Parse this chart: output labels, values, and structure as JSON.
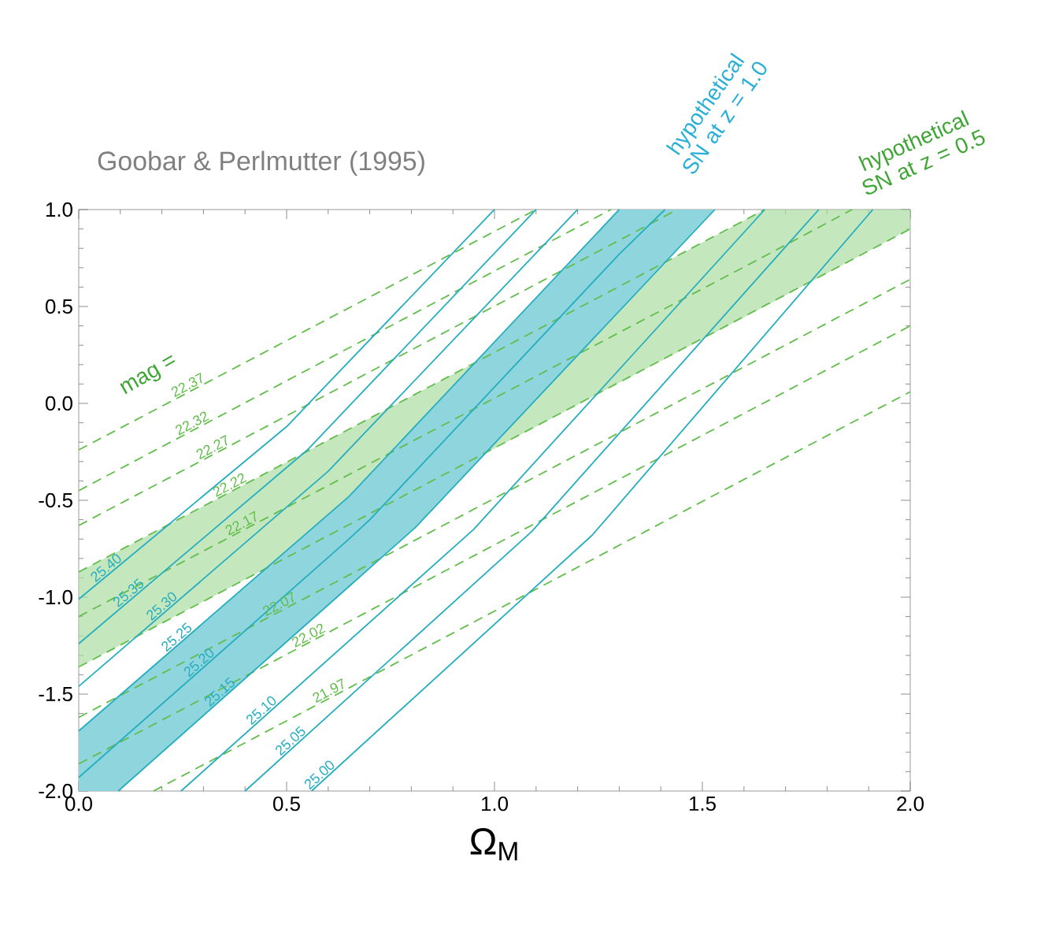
{
  "chart_data": {
    "type": "line",
    "title": "Goobar & Perlmutter (1995)",
    "xlabel": "Ω$_{M}$",
    "xlim": [
      0,
      2
    ],
    "ylim": [
      -2,
      1
    ],
    "xticks": [
      {
        "value": 0,
        "label": "0.0"
      },
      {
        "value": 0.5,
        "label": "0.5"
      },
      {
        "value": 1,
        "label": "1.0"
      },
      {
        "value": 1.5,
        "label": "1.5"
      },
      {
        "value": 2,
        "label": "2.0"
      }
    ],
    "yticks": [
      {
        "value": -2,
        "label": "-2.0"
      },
      {
        "value": -1.5,
        "label": "-1.5"
      },
      {
        "value": -1,
        "label": "-1.0"
      },
      {
        "value": -0.5,
        "label": "-0.5"
      },
      {
        "value": 0,
        "label": "0.0"
      },
      {
        "value": 0.5,
        "label": "0.5"
      },
      {
        "value": 1,
        "label": "1.0"
      }
    ],
    "marker": "none",
    "annotations": [
      "mag =",
      "hypothetical SN at  z = 1.0",
      "hypothetical SN at  z = 0.5"
    ],
    "series": [
      {
        "name": "22.37",
        "color": "#62bd4c",
        "line_style": "dashed",
        "x": [
          0,
          1.1
        ],
        "values": [
          -0.24,
          1.0
        ]
      },
      {
        "name": "22.32",
        "color": "#62bd4c",
        "line_style": "dashed",
        "x": [
          0,
          1.28
        ],
        "values": [
          -0.45,
          1.0
        ]
      },
      {
        "name": "22.27",
        "color": "#62bd4c",
        "line_style": "dashed",
        "x": [
          0,
          1.44
        ],
        "values": [
          -0.63,
          1.0
        ]
      },
      {
        "name": "22.22",
        "color": "#62bd4c",
        "line_style": "dashed",
        "x": [
          0,
          1.65
        ],
        "values": [
          -0.87,
          1.0
        ]
      },
      {
        "name": "22.17",
        "color": "#62bd4c",
        "line_style": "dashed",
        "x": [
          0,
          1.65,
          1.86,
          2.0
        ],
        "values": [
          -1.1,
          0.76,
          1.0,
          null
        ],
        "lower": [
          -1.36,
          0.5,
          0.74,
          0.9
        ],
        "upper": [
          -0.87,
          1.0,
          1.0,
          1.0
        ]
      },
      {
        "color": "#62bd4c",
        "line_style": "dashed",
        "x": [
          0,
          2
        ],
        "values": [
          -1.36,
          0.9
        ]
      },
      {
        "name": "22.07",
        "color": "#62bd4c",
        "line_style": "dashed",
        "x": [
          0,
          2
        ],
        "values": [
          -1.62,
          0.64
        ]
      },
      {
        "name": "22.02",
        "color": "#62bd4c",
        "line_style": "dashed",
        "x": [
          0,
          2
        ],
        "values": [
          -1.86,
          0.4
        ]
      },
      {
        "name": "21.97",
        "color": "#62bd4c",
        "line_style": "dashed",
        "x": [
          0.18,
          2
        ],
        "values": [
          -2.0,
          0.06
        ]
      },
      {
        "name": "25.40",
        "color": "#26aebf",
        "line_style": "solid",
        "x": [
          0,
          0.5,
          1.0
        ],
        "values": [
          -1.01,
          -0.12,
          1.0
        ]
      },
      {
        "name": "25.35",
        "color": "#26aebf",
        "line_style": "solid",
        "x": [
          0,
          0.55,
          1.1
        ],
        "values": [
          -1.24,
          -0.24,
          1.0
        ]
      },
      {
        "name": "25.30",
        "color": "#26aebf",
        "line_style": "solid",
        "x": [
          0,
          0.6,
          1.2
        ],
        "values": [
          -1.46,
          -0.35,
          1.0
        ]
      },
      {
        "name": "25.25",
        "color": "#26aebf",
        "line_style": "solid",
        "x": [
          0,
          0.65,
          1.3
        ],
        "values": [
          -1.69,
          -0.48,
          1.0
        ]
      },
      {
        "name": "25.20",
        "color": "#26aebf",
        "line_style": "solid",
        "x": [
          0,
          0.095,
          0.65,
          0.7,
          0.81,
          1.3,
          1.41,
          1.53
        ],
        "values": [
          -1.93,
          -1.75,
          -0.7,
          -0.6,
          -0.35,
          0.77,
          1.0,
          null
        ],
        "lower": [
          -2.0,
          -2.0,
          -0.95,
          -0.85,
          -0.64,
          0.48,
          null,
          1.0
        ],
        "upper": [
          -1.69,
          -1.51,
          -0.48,
          -0.37,
          -0.12,
          1.0,
          null,
          1.0
        ]
      },
      {
        "name": "25.15",
        "color": "#26aebf",
        "line_style": "solid",
        "x": [
          0.095,
          0.81,
          1.53
        ],
        "values": [
          -2.0,
          -0.64,
          1.0
        ]
      },
      {
        "name": "25.10",
        "color": "#26aebf",
        "line_style": "solid",
        "x": [
          0.246,
          0.95,
          1.65
        ],
        "values": [
          -2.0,
          -0.65,
          1.0
        ]
      },
      {
        "name": "25.05",
        "color": "#26aebf",
        "line_style": "solid",
        "x": [
          0.4,
          1.09,
          1.78
        ],
        "values": [
          -2.0,
          -0.66,
          1.0
        ]
      },
      {
        "name": "25.00",
        "color": "#26aebf",
        "line_style": "solid",
        "x": [
          0.56,
          1.235,
          1.91
        ],
        "values": [
          -2.0,
          -0.68,
          1.0
        ]
      }
    ]
  }
}
